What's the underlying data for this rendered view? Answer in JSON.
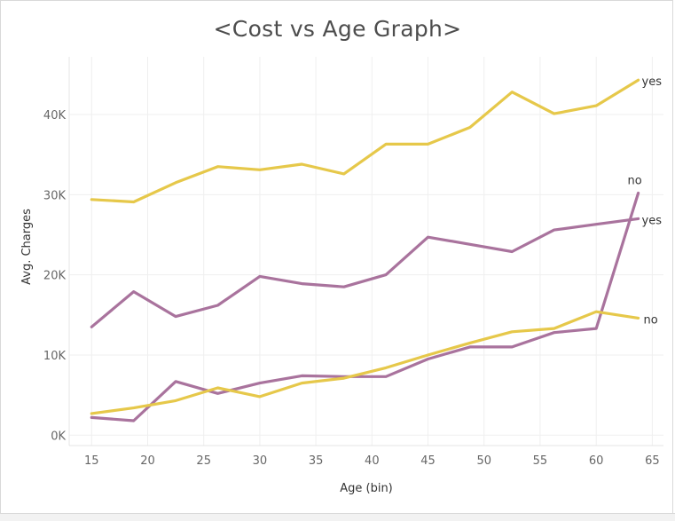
{
  "chart_data": {
    "type": "line",
    "title": "<Cost vs Age Graph>",
    "xlabel": "Age (bin)",
    "ylabel": "Avg. Charges",
    "x_ticks": [
      15,
      20,
      25,
      30,
      35,
      40,
      45,
      50,
      55,
      60,
      65
    ],
    "y_ticks": [
      {
        "value": 0,
        "label": "0K"
      },
      {
        "value": 10000,
        "label": "10K"
      },
      {
        "value": 20000,
        "label": "20K"
      },
      {
        "value": 30000,
        "label": "30K"
      },
      {
        "value": 40000,
        "label": "40K"
      }
    ],
    "xlim": [
      13,
      66
    ],
    "ylim": [
      -1300,
      47200
    ],
    "grid": true,
    "x": [
      15,
      18.75,
      22.5,
      26.25,
      30,
      33.75,
      37.5,
      41.25,
      45,
      48.75,
      52.5,
      56.25,
      60,
      63.75
    ],
    "series": [
      {
        "name": "yes",
        "color": "#e6c84a",
        "values": [
          29400,
          29100,
          31500,
          33500,
          33100,
          33800,
          32600,
          36300,
          36300,
          38400,
          42800,
          40100,
          41100,
          44300
        ]
      },
      {
        "name": "yes",
        "color": "#a9739d",
        "values": [
          13500,
          17900,
          14800,
          16200,
          19800,
          18900,
          18500,
          20000,
          24700,
          23800,
          22900,
          25600,
          26300,
          27000
        ]
      },
      {
        "name": "no",
        "color": "#a9739d",
        "values": [
          2200,
          1800,
          6700,
          5200,
          6500,
          7400,
          7300,
          7300,
          9500,
          11000,
          11000,
          12800,
          13300,
          30200
        ]
      },
      {
        "name": "no",
        "color": "#e6c84a",
        "values": [
          2700,
          3400,
          4300,
          5900,
          4800,
          6500,
          7100,
          8400,
          10000,
          11500,
          12900,
          13300,
          15400,
          14600
        ]
      }
    ]
  }
}
